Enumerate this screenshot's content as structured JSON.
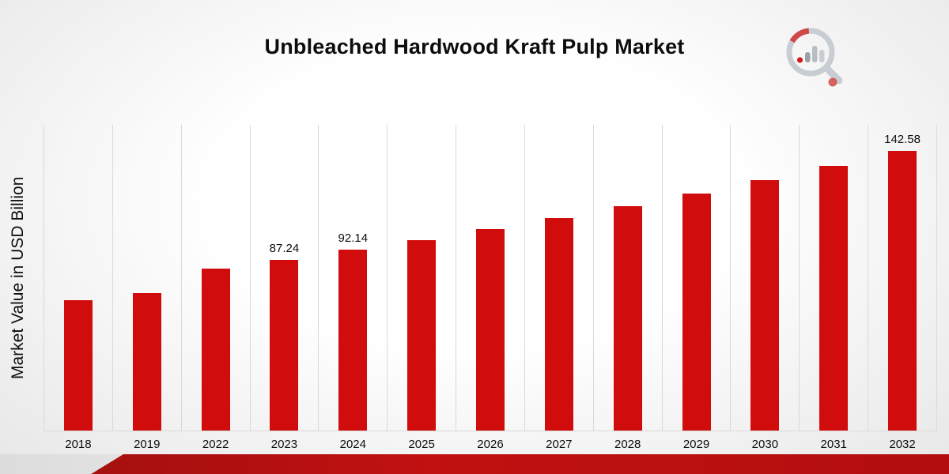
{
  "title": "Unbleached Hardwood Kraft Pulp Market",
  "logo": {
    "name": "brand-logo"
  },
  "colors": {
    "bar": "#d10c0c",
    "ribbon": "#b30e0e",
    "gridline": "#d9d9d9",
    "text": "#0d0d0d"
  },
  "chart_data": {
    "type": "bar",
    "title": "Unbleached Hardwood Kraft Pulp Market",
    "xlabel": "",
    "ylabel": "Market Value in USD Billion",
    "categories": [
      "2018",
      "2019",
      "2022",
      "2023",
      "2024",
      "2025",
      "2026",
      "2027",
      "2028",
      "2029",
      "2030",
      "2031",
      "2032"
    ],
    "values": [
      66.6,
      70.2,
      82.6,
      87.24,
      92.14,
      97.3,
      102.7,
      108.5,
      114.6,
      121.0,
      127.8,
      135.0,
      142.58
    ],
    "value_labels": [
      "",
      "",
      "",
      "87.24",
      "92.14",
      "",
      "",
      "",
      "",
      "",
      "",
      "",
      "142.58"
    ],
    "ylim": [
      0,
      156
    ],
    "grid": "vertical",
    "legend": "none",
    "bar_color": "#d10c0c"
  }
}
